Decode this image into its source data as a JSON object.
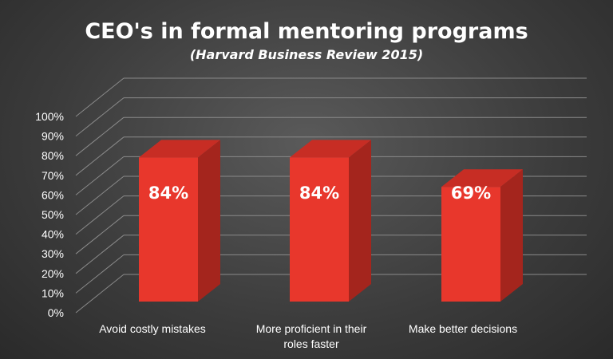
{
  "chart_data": {
    "type": "bar",
    "title": "CEO's in formal mentoring programs",
    "subtitle": "(Harvard Business Review 2015)",
    "categories": [
      [
        "Avoid costly mistakes"
      ],
      [
        "More proficient in their",
        "roles faster"
      ],
      [
        "Make better decisions"
      ]
    ],
    "values": [
      84,
      84,
      69
    ],
    "data_labels": [
      "84%",
      "84%",
      "69%"
    ],
    "yticks": [
      "0%",
      "10%",
      "20%",
      "30%",
      "40%",
      "50%",
      "60%",
      "70%",
      "80%",
      "90%",
      "100%"
    ],
    "ylim": [
      0,
      100
    ],
    "grid": true,
    "legend": "none",
    "colors": {
      "bar_front": "#e8372c",
      "bar_side": "#a4251d",
      "bar_top": "#c72d24",
      "text": "#ffffff",
      "grid": "#8a8a8a"
    }
  }
}
